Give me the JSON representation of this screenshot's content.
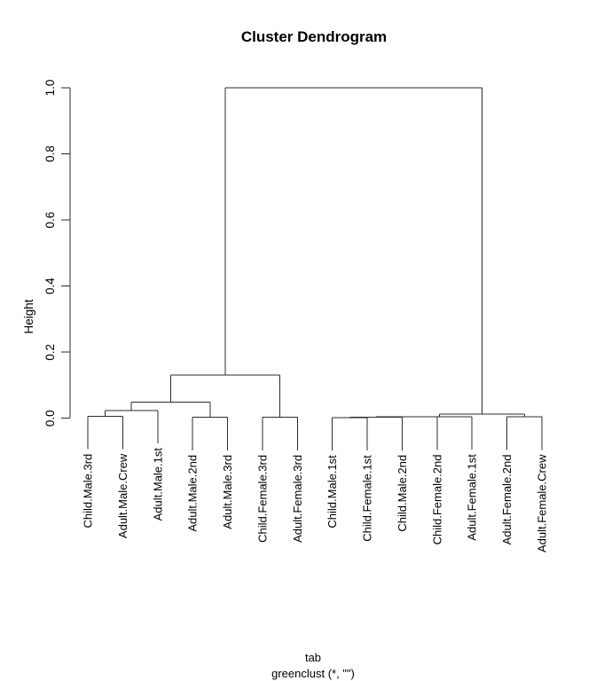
{
  "figure": {
    "background": "#ffffff"
  },
  "chart_data": {
    "type": "dendrogram",
    "title": "Cluster Dendrogram",
    "ylabel": "Height",
    "xlabel_line1": "tab",
    "xlabel_line2": "greenclust (*, \"\")",
    "ylim": [
      0.0,
      1.0
    ],
    "y_ticks": [
      "0.0",
      "0.2",
      "0.4",
      "0.6",
      "0.8",
      "1.0"
    ],
    "grid": false,
    "legend": false,
    "hang": 0.1,
    "line_color": "#2b2b2b",
    "text_color": "#000000",
    "leaf_order": [
      "Child.Male.3rd",
      "Adult.Male.Crew",
      "Adult.Male.1st",
      "Adult.Male.2nd",
      "Adult.Male.3rd",
      "Child.Female.3rd",
      "Adult.Female.3rd",
      "Child.Male.1st",
      "Child.Female.1st",
      "Child.Male.2nd",
      "Child.Female.2nd",
      "Adult.Female.1st",
      "Adult.Female.2nd",
      "Adult.Female.Crew"
    ],
    "merges": [
      {
        "id": "M1",
        "children": [
          "L1",
          "L2"
        ],
        "height": 0.006
      },
      {
        "id": "M2",
        "children": [
          "M1",
          "L3"
        ],
        "height": 0.024
      },
      {
        "id": "M3",
        "children": [
          "L4",
          "L5"
        ],
        "height": 0.003
      },
      {
        "id": "M4",
        "children": [
          "M2",
          "M3"
        ],
        "height": 0.049
      },
      {
        "id": "M5",
        "children": [
          "L6",
          "L7"
        ],
        "height": 0.003
      },
      {
        "id": "M6",
        "children": [
          "M4",
          "M5"
        ],
        "height": 0.131
      },
      {
        "id": "M7",
        "children": [
          "L8",
          "L9"
        ],
        "height": 0.002
      },
      {
        "id": "M8",
        "children": [
          "M7",
          "L10"
        ],
        "height": 0.003
      },
      {
        "id": "M9",
        "children": [
          "M8",
          "L11"
        ],
        "height": 0.004
      },
      {
        "id": "M10",
        "children": [
          "M9",
          "L12"
        ],
        "height": 0.005
      },
      {
        "id": "M11",
        "children": [
          "L13",
          "L14"
        ],
        "height": 0.004
      },
      {
        "id": "M12",
        "children": [
          "M10",
          "M11"
        ],
        "height": 0.013
      },
      {
        "id": "M13",
        "children": [
          "M6",
          "M12"
        ],
        "height": 1.0
      }
    ]
  }
}
